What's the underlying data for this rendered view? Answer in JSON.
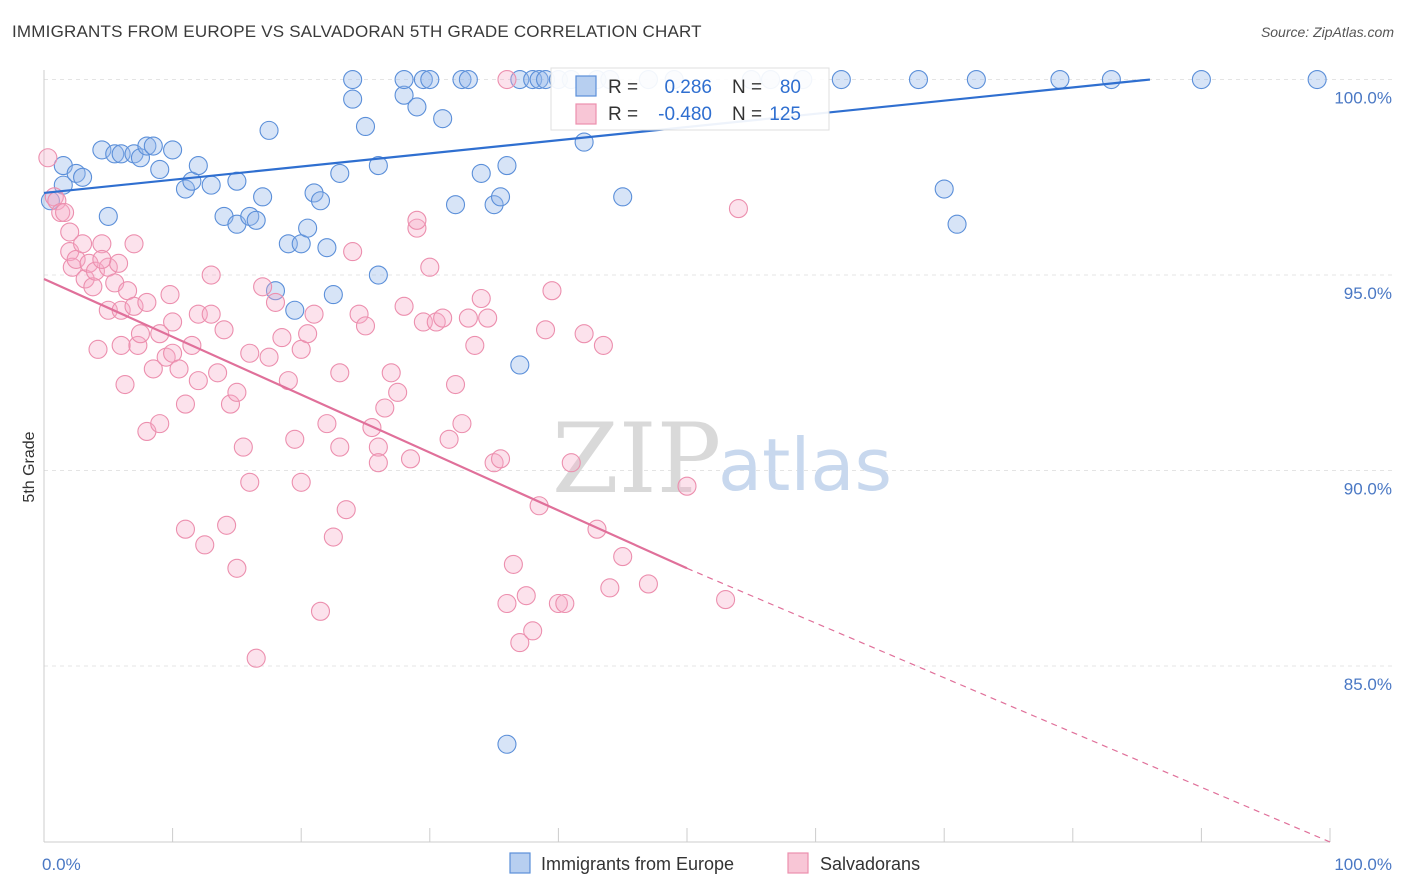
{
  "header": {
    "title": "IMMIGRANTS FROM EUROPE VS SALVADORAN 5TH GRADE CORRELATION CHART",
    "source": "Source: ZipAtlas.com"
  },
  "watermark": {
    "zip": "ZIP",
    "atlas": "atlas"
  },
  "stats": [
    {
      "r_label": "R =",
      "r_value": "0.286",
      "n_label": "N =",
      "n_value": "80"
    },
    {
      "r_label": "R =",
      "r_value": "-0.480",
      "n_label": "N =",
      "n_value": "125"
    }
  ],
  "chart_data": {
    "type": "scatter",
    "title": "IMMIGRANTS FROM EUROPE VS SALVADORAN 5TH GRADE CORRELATION CHART",
    "xlabel": "",
    "ylabel": "5th Grade",
    "xlim": [
      0,
      100
    ],
    "ylim": [
      80.5,
      100.5
    ],
    "x_tick_labels": [
      "0.0%",
      "100.0%"
    ],
    "y_ticks": [
      100,
      95,
      90,
      85
    ],
    "y_tick_labels": [
      "100.0%",
      "95.0%",
      "90.0%",
      "85.0%"
    ],
    "grid": true,
    "legend_position": "bottom",
    "colors": {
      "europe": "#5b8fd9",
      "salvadoran": "#ec8fae",
      "europe_line": "#2f6fd0",
      "salvadoran_line": "#e0709a"
    },
    "series": [
      {
        "name": "Immigrants from Europe",
        "key": "europe",
        "trend": {
          "x": [
            0,
            86
          ],
          "y": [
            97.1,
            100
          ]
        },
        "points": [
          [
            1.5,
            97.8
          ],
          [
            1.5,
            97.3
          ],
          [
            0.5,
            96.9
          ],
          [
            2.5,
            97.6
          ],
          [
            3,
            97.5
          ],
          [
            4.5,
            98.2
          ],
          [
            5.5,
            98.1
          ],
          [
            6,
            98.1
          ],
          [
            5,
            96.5
          ],
          [
            7,
            98.1
          ],
          [
            7.5,
            98
          ],
          [
            8,
            98.3
          ],
          [
            8.5,
            98.3
          ],
          [
            9,
            97.7
          ],
          [
            10,
            98.2
          ],
          [
            11,
            97.2
          ],
          [
            11.5,
            97.4
          ],
          [
            12,
            97.8
          ],
          [
            13,
            97.3
          ],
          [
            14,
            96.5
          ],
          [
            15,
            97.4
          ],
          [
            15,
            96.3
          ],
          [
            16,
            96.5
          ],
          [
            16.5,
            96.4
          ],
          [
            17,
            97
          ],
          [
            17.5,
            98.7
          ],
          [
            18,
            94.6
          ],
          [
            19,
            95.8
          ],
          [
            19.5,
            94.1
          ],
          [
            20,
            95.8
          ],
          [
            20.5,
            96.2
          ],
          [
            21,
            97.1
          ],
          [
            21.5,
            96.9
          ],
          [
            22,
            95.7
          ],
          [
            22.5,
            94.5
          ],
          [
            23,
            97.6
          ],
          [
            24,
            99.5
          ],
          [
            24,
            100
          ],
          [
            25,
            98.8
          ],
          [
            26,
            97.8
          ],
          [
            26,
            95
          ],
          [
            28,
            99.6
          ],
          [
            28,
            100
          ],
          [
            29,
            99.3
          ],
          [
            29.5,
            100
          ],
          [
            30,
            100
          ],
          [
            31,
            99
          ],
          [
            32,
            96.8
          ],
          [
            32.5,
            100
          ],
          [
            33,
            100
          ],
          [
            34,
            97.6
          ],
          [
            35,
            96.8
          ],
          [
            35.5,
            97
          ],
          [
            36,
            97.8
          ],
          [
            37,
            100
          ],
          [
            38,
            100
          ],
          [
            38.5,
            100
          ],
          [
            39,
            100
          ],
          [
            40,
            100
          ],
          [
            41,
            100
          ],
          [
            42,
            98.4
          ],
          [
            43,
            100
          ],
          [
            44,
            100
          ],
          [
            45,
            97
          ],
          [
            47,
            100
          ],
          [
            49,
            100
          ],
          [
            55,
            100
          ],
          [
            56.5,
            100
          ],
          [
            59,
            100
          ],
          [
            62,
            100
          ],
          [
            68,
            100
          ],
          [
            70,
            97.2
          ],
          [
            71,
            96.3
          ],
          [
            72.5,
            100
          ],
          [
            79,
            100
          ],
          [
            83,
            100
          ],
          [
            90,
            100
          ],
          [
            99,
            100
          ],
          [
            37,
            92.7
          ],
          [
            36,
            83
          ]
        ]
      },
      {
        "name": "Salvadorans",
        "key": "salvadoran",
        "trend": {
          "x": [
            0,
            50
          ],
          "y": [
            94.9,
            87.5
          ]
        },
        "trend_dashed": {
          "x": [
            50,
            100
          ],
          "y": [
            87.5,
            80.5
          ]
        },
        "points": [
          [
            0.3,
            98
          ],
          [
            0.8,
            97
          ],
          [
            1,
            96.9
          ],
          [
            1.3,
            96.6
          ],
          [
            1.6,
            96.6
          ],
          [
            2,
            96.1
          ],
          [
            2,
            95.6
          ],
          [
            2.2,
            95.2
          ],
          [
            2.5,
            95.4
          ],
          [
            3,
            95.8
          ],
          [
            3.2,
            94.9
          ],
          [
            3.5,
            95.3
          ],
          [
            3.8,
            94.7
          ],
          [
            4,
            95.1
          ],
          [
            4.2,
            93.1
          ],
          [
            4.5,
            95.8
          ],
          [
            5,
            95.2
          ],
          [
            5,
            94.1
          ],
          [
            5.5,
            94.8
          ],
          [
            6,
            94.1
          ],
          [
            6,
            93.2
          ],
          [
            6.3,
            92.2
          ],
          [
            6.5,
            94.6
          ],
          [
            7,
            95.8
          ],
          [
            7,
            94.2
          ],
          [
            7.3,
            93.2
          ],
          [
            7.5,
            93.5
          ],
          [
            8,
            94.3
          ],
          [
            8,
            91
          ],
          [
            8.5,
            92.6
          ],
          [
            9,
            93.5
          ],
          [
            9,
            91.2
          ],
          [
            9.5,
            92.9
          ],
          [
            9.8,
            94.5
          ],
          [
            10,
            93.8
          ],
          [
            10,
            93
          ],
          [
            10.5,
            92.6
          ],
          [
            11,
            91.7
          ],
          [
            11,
            88.5
          ],
          [
            11.5,
            93.2
          ],
          [
            12,
            94
          ],
          [
            12,
            92.3
          ],
          [
            12.5,
            88.1
          ],
          [
            13,
            95
          ],
          [
            13,
            94
          ],
          [
            13.5,
            92.5
          ],
          [
            14,
            93.6
          ],
          [
            14.2,
            88.6
          ],
          [
            14.5,
            91.7
          ],
          [
            15,
            92
          ],
          [
            15,
            87.5
          ],
          [
            15.5,
            90.6
          ],
          [
            16,
            93
          ],
          [
            16,
            89.7
          ],
          [
            16.5,
            85.2
          ],
          [
            17,
            94.7
          ],
          [
            17.5,
            92.9
          ],
          [
            18,
            94.3
          ],
          [
            18.5,
            93.4
          ],
          [
            19,
            92.3
          ],
          [
            19.5,
            90.8
          ],
          [
            20,
            89.7
          ],
          [
            20,
            93.1
          ],
          [
            20.5,
            93.5
          ],
          [
            21,
            94
          ],
          [
            21.5,
            86.4
          ],
          [
            22,
            91.2
          ],
          [
            22.5,
            88.3
          ],
          [
            23,
            90.6
          ],
          [
            23,
            92.5
          ],
          [
            23.5,
            89
          ],
          [
            24,
            95.6
          ],
          [
            24.5,
            94
          ],
          [
            25,
            93.7
          ],
          [
            25.5,
            91.1
          ],
          [
            26,
            90.6
          ],
          [
            26,
            90.2
          ],
          [
            26.5,
            91.6
          ],
          [
            27,
            92.5
          ],
          [
            27.5,
            92
          ],
          [
            28,
            94.2
          ],
          [
            28.5,
            90.3
          ],
          [
            29,
            96.2
          ],
          [
            29,
            96.4
          ],
          [
            29.5,
            93.8
          ],
          [
            30,
            95.2
          ],
          [
            30.5,
            93.8
          ],
          [
            31,
            93.9
          ],
          [
            31.5,
            90.8
          ],
          [
            32,
            92.2
          ],
          [
            32.5,
            91.2
          ],
          [
            33,
            93.9
          ],
          [
            33.5,
            93.2
          ],
          [
            34,
            94.4
          ],
          [
            34.5,
            93.9
          ],
          [
            35,
            90.2
          ],
          [
            35.5,
            90.3
          ],
          [
            36,
            86.6
          ],
          [
            36.5,
            87.6
          ],
          [
            37,
            85.6
          ],
          [
            37.5,
            86.8
          ],
          [
            38,
            85.9
          ],
          [
            38.5,
            89.1
          ],
          [
            39,
            93.6
          ],
          [
            39.5,
            94.6
          ],
          [
            40,
            86.6
          ],
          [
            40.5,
            86.6
          ],
          [
            41,
            90.2
          ],
          [
            42,
            93.5
          ],
          [
            43,
            88.5
          ],
          [
            43.5,
            93.2
          ],
          [
            44,
            87
          ],
          [
            45,
            87.8
          ],
          [
            47,
            87.1
          ],
          [
            50,
            89.6
          ],
          [
            53,
            86.7
          ],
          [
            54,
            96.7
          ],
          [
            36,
            100
          ],
          [
            5.8,
            95.3
          ],
          [
            4.5,
            95.4
          ]
        ]
      }
    ]
  },
  "legend": {
    "items": [
      {
        "label": "Immigrants from Europe",
        "color_key": "europe"
      },
      {
        "label": "Salvadorans",
        "color_key": "salvadoran"
      }
    ]
  }
}
